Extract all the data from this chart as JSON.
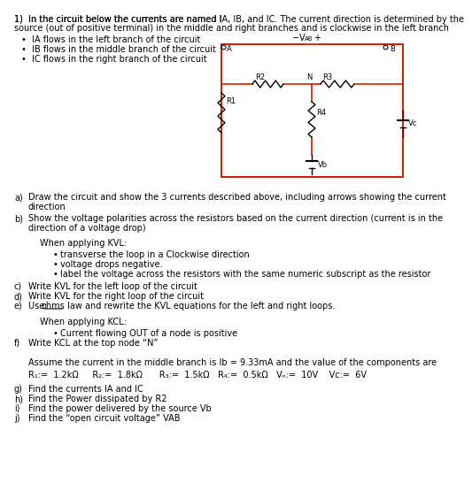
{
  "bg_color": "#ffffff",
  "text_color": "#000000",
  "circuit_color": "#cc2200",
  "resistor_color": "#000000",
  "font_size": 7.0,
  "title1": "1)  In the circuit below the currents are named I",
  "title1b": ", I",
  "title1c": ", and I",
  "title1d": ". The current direction is determined by the",
  "title2": "source (out of positive terminal) in the middle and right branches and is clockwise in the left branch",
  "bullet1": " flows in the left branch of the circuit",
  "bullet2": " flows in the middle branch of the circuit",
  "bullet3": " flows in the right branch of the circuit",
  "qa": "Draw the circuit and show the 3 currents described above, including arrows showing the current",
  "qa2": "direction",
  "qb": "Show the voltage polarities across the resistors based on the current direction (current is in the",
  "qb2": "direction of a voltage drop)",
  "kvl_hdr": "When applying KVL:",
  "kvl1": "transverse the loop in a Clockwise direction",
  "kvl2": "voltage drops negative.",
  "kvl3": "label the voltage across the resistors with the same numeric subscript as the resistor",
  "qc": "Write KVL for the left loop of the circuit",
  "qd": "Write KVL for the right loop of the circuit",
  "qe1": "Use ",
  "qe2": "ohms",
  "qe3": " law and rewrite the KVL equations for the left and right loops.",
  "kcl_hdr": "When applying KCL:",
  "kcl1": "Current flowing OUT of a node is positive",
  "qf": "Write KCL at the top node “N”",
  "assume": "Assume the current in the middle branch is I",
  "assume2": " = 9.33mA and the value of the components are",
  "comp": "R",
  "qg": "Find the currents I",
  "qg2": " and I",
  "qh": "Find the Power dissipated by R2",
  "qi": "Find the power delivered by the source V",
  "qj": "Find the “open circuit voltage” V"
}
